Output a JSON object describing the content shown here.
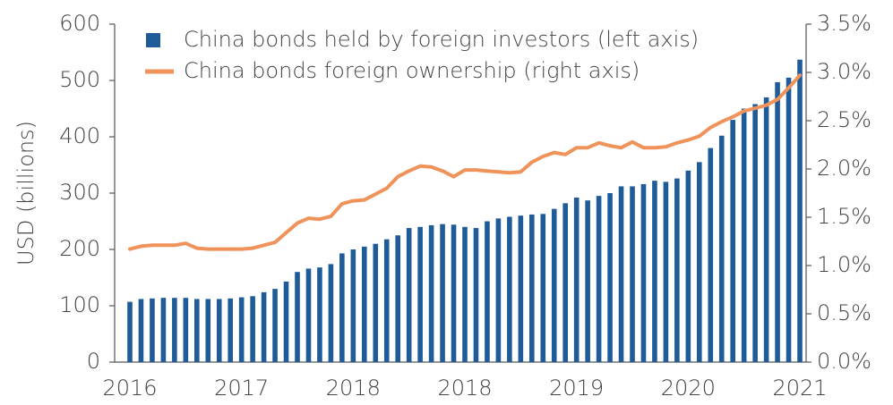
{
  "chart_data": {
    "type": "bar",
    "y_label": "USD (billions)",
    "categories": [
      "2016",
      null,
      null,
      null,
      null,
      null,
      null,
      null,
      null,
      null,
      "2017",
      null,
      null,
      null,
      null,
      null,
      null,
      null,
      null,
      null,
      "2018",
      null,
      null,
      null,
      null,
      null,
      null,
      null,
      null,
      null,
      "2018",
      null,
      null,
      null,
      null,
      null,
      null,
      null,
      null,
      null,
      "2019",
      null,
      null,
      null,
      null,
      null,
      null,
      null,
      null,
      null,
      "2020",
      null,
      null,
      null,
      null,
      null,
      null,
      null,
      null,
      null,
      "2021"
    ],
    "series": [
      {
        "name": "China bonds held by foreign investors (left axis)",
        "type": "bar",
        "color": "#1f5b98",
        "values": [
          107,
          112,
          113,
          114,
          114,
          114,
          112,
          112,
          112,
          113,
          115,
          117,
          124,
          130,
          143,
          160,
          166,
          168,
          174,
          193,
          200,
          205,
          210,
          218,
          225,
          238,
          240,
          243,
          245,
          244,
          240,
          238,
          250,
          255,
          258,
          260,
          262,
          263,
          272,
          282,
          292,
          287,
          295,
          300,
          312,
          312,
          316,
          322,
          320,
          326,
          340,
          355,
          380,
          402,
          430,
          450,
          458,
          470,
          497,
          505,
          537
        ]
      },
      {
        "name": "China bonds foreign ownership (right axis)",
        "type": "line",
        "axis": "y2",
        "color": "#f0935a",
        "values": [
          1.17,
          1.2,
          1.21,
          1.21,
          1.21,
          1.23,
          1.18,
          1.17,
          1.17,
          1.17,
          1.17,
          1.18,
          1.21,
          1.24,
          1.34,
          1.44,
          1.49,
          1.48,
          1.51,
          1.64,
          1.67,
          1.68,
          1.74,
          1.8,
          1.92,
          1.98,
          2.03,
          2.02,
          1.98,
          1.92,
          1.99,
          1.99,
          1.98,
          1.97,
          1.96,
          1.97,
          2.07,
          2.13,
          2.17,
          2.15,
          2.22,
          2.22,
          2.27,
          2.24,
          2.22,
          2.28,
          2.22,
          2.22,
          2.23,
          2.27,
          2.3,
          2.34,
          2.43,
          2.49,
          2.54,
          2.6,
          2.63,
          2.66,
          2.72,
          2.84,
          2.97
        ]
      }
    ],
    "ylim": [
      0,
      600
    ],
    "yticks": [
      0,
      100,
      200,
      300,
      400,
      500,
      600
    ],
    "y2lim": [
      0,
      3.5
    ],
    "y2ticks": [
      {
        "value": 0,
        "label": "0.0%"
      },
      {
        "value": 0.5,
        "label": "0.5%"
      },
      {
        "value": 1,
        "label": "1.0%"
      },
      {
        "value": 1.5,
        "label": "1.5%"
      },
      {
        "value": 2,
        "label": "2.0%"
      },
      {
        "value": 2.5,
        "label": "2.5%"
      },
      {
        "value": 3,
        "label": "3.0%"
      },
      {
        "value": 3.5,
        "label": "3.5%"
      }
    ],
    "legend": "top-left"
  }
}
